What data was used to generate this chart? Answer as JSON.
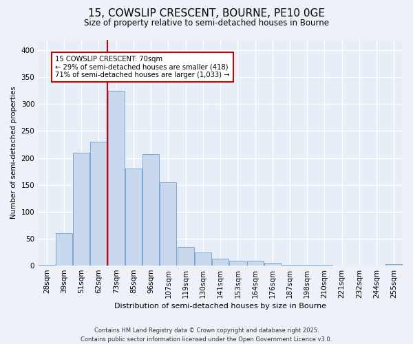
{
  "title1": "15, COWSLIP CRESCENT, BOURNE, PE10 0GE",
  "title2": "Size of property relative to semi-detached houses in Bourne",
  "xlabel": "Distribution of semi-detached houses by size in Bourne",
  "ylabel": "Number of semi-detached properties",
  "categories": [
    "28sqm",
    "39sqm",
    "51sqm",
    "62sqm",
    "73sqm",
    "85sqm",
    "96sqm",
    "107sqm",
    "119sqm",
    "130sqm",
    "141sqm",
    "153sqm",
    "164sqm",
    "176sqm",
    "187sqm",
    "198sqm",
    "210sqm",
    "221sqm",
    "232sqm",
    "244sqm",
    "255sqm"
  ],
  "values": [
    2,
    60,
    210,
    230,
    325,
    180,
    207,
    155,
    35,
    25,
    13,
    9,
    9,
    5,
    2,
    1,
    1,
    0,
    0,
    0,
    3
  ],
  "bar_color": "#c9d9ed",
  "bar_edge_color": "#7ba7ce",
  "property_line_index": 4,
  "annotation_title": "15 COWSLIP CRESCENT: 70sqm",
  "annotation_line1": "← 29% of semi-detached houses are smaller (418)",
  "annotation_line2": "71% of semi-detached houses are larger (1,033) →",
  "annotation_box_color": "#ffffff",
  "annotation_box_edge_color": "#cc0000",
  "property_line_color": "#cc0000",
  "footer1": "Contains HM Land Registry data © Crown copyright and database right 2025.",
  "footer2": "Contains public sector information licensed under the Open Government Licence v3.0.",
  "ylim": [
    0,
    420
  ],
  "yticks": [
    0,
    50,
    100,
    150,
    200,
    250,
    300,
    350,
    400
  ],
  "background_color": "#eef2f8",
  "plot_background": "#e8eef8"
}
